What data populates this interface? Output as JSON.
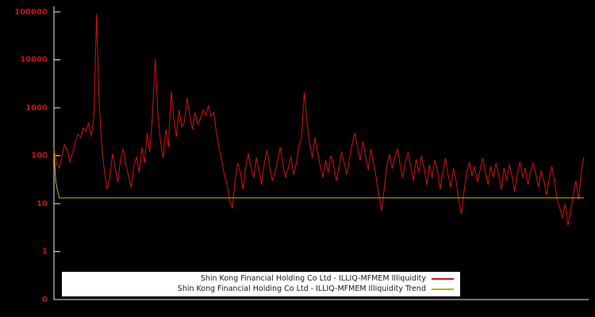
{
  "chart_data": {
    "type": "line",
    "title": "",
    "xlabel": "",
    "ylabel": "",
    "background": "#000000",
    "axis_color": "#e8e8e8",
    "tick_label_color": "#cc1111",
    "grid": false,
    "legend": {
      "position": "bottom-center",
      "background": "#ffffff"
    },
    "x_axis": {
      "range": [
        0,
        199
      ],
      "ticks": []
    },
    "y_axis": {
      "scale": "log",
      "range": [
        0.1,
        100000
      ],
      "ticks": [
        "100000",
        "10000",
        "1000",
        "100",
        "10",
        "1",
        "0"
      ],
      "tick_values": [
        100000,
        10000,
        1000,
        100,
        10,
        1,
        0.1
      ]
    },
    "series": [
      {
        "name": "Shin Kong Financial Holding Co Ltd - ILLIQ-MFMEM Illiquidity",
        "color": "#d21414",
        "stroke_width": 1,
        "values": [
          140,
          70,
          55,
          100,
          170,
          130,
          75,
          115,
          190,
          280,
          240,
          380,
          320,
          480,
          260,
          650,
          90000,
          1200,
          150,
          45,
          20,
          35,
          110,
          55,
          28,
          85,
          140,
          65,
          38,
          22,
          60,
          95,
          45,
          150,
          70,
          300,
          120,
          700,
          10500,
          800,
          200,
          90,
          350,
          150,
          2200,
          600,
          250,
          900,
          400,
          500,
          1600,
          700,
          350,
          800,
          450,
          600,
          900,
          700,
          1100,
          650,
          800,
          300,
          150,
          80,
          40,
          25,
          12,
          8,
          30,
          70,
          45,
          20,
          60,
          110,
          55,
          35,
          90,
          50,
          25,
          70,
          130,
          60,
          30,
          45,
          80,
          150,
          65,
          35,
          55,
          95,
          40,
          70,
          160,
          250,
          2100,
          500,
          180,
          90,
          240,
          120,
          60,
          35,
          80,
          45,
          100,
          65,
          30,
          55,
          120,
          70,
          40,
          90,
          180,
          300,
          150,
          80,
          200,
          100,
          50,
          140,
          70,
          35,
          15,
          7,
          20,
          60,
          110,
          55,
          90,
          140,
          65,
          35,
          75,
          120,
          60,
          30,
          85,
          45,
          100,
          55,
          25,
          65,
          35,
          80,
          50,
          20,
          45,
          90,
          40,
          22,
          55,
          30,
          12,
          6,
          18,
          45,
          75,
          38,
          60,
          28,
          50,
          90,
          45,
          25,
          60,
          35,
          70,
          40,
          20,
          55,
          30,
          65,
          38,
          18,
          42,
          75,
          35,
          55,
          25,
          48,
          70,
          40,
          22,
          50,
          30,
          15,
          35,
          60,
          28,
          12,
          8,
          5,
          10,
          3.5,
          7,
          15,
          30,
          12,
          45,
          95
        ]
      },
      {
        "name": "Shin Kong Financial Holding Co Ltd - ILLIQ-MFMEM Illiquidity Trend",
        "color": "#c2ae00",
        "stroke_width": 1,
        "x": [
          0,
          0.7,
          2,
          199
        ],
        "values": [
          140,
          28,
          13.2,
          13.2
        ]
      }
    ]
  }
}
